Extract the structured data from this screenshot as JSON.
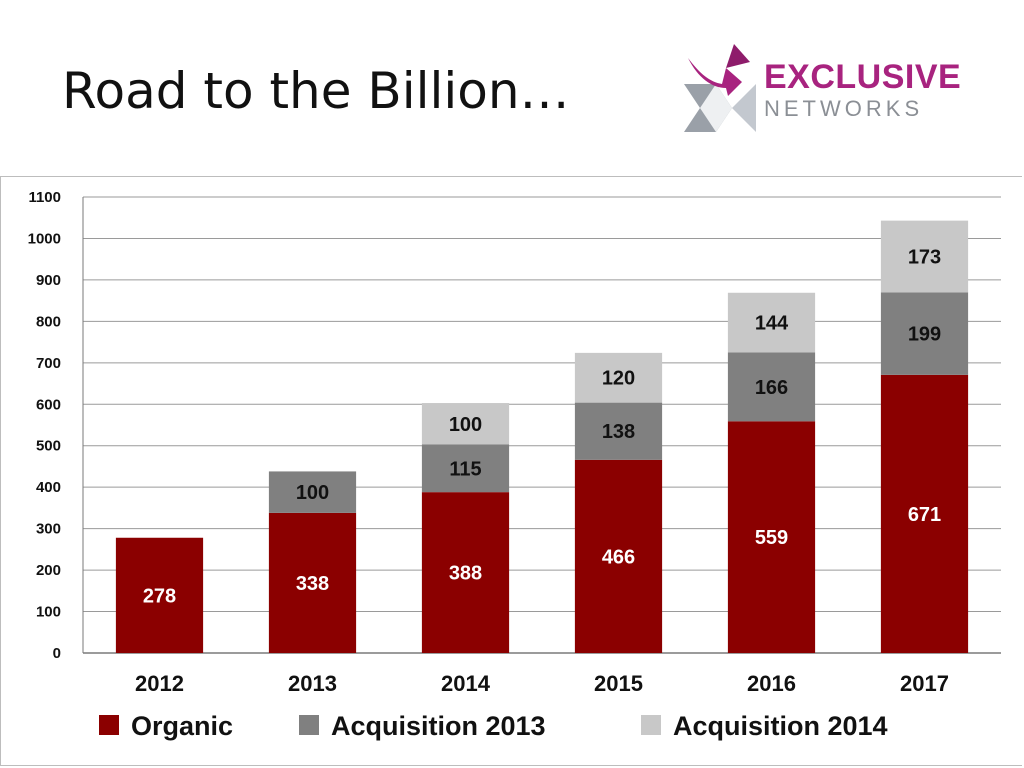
{
  "slide": {
    "title": "Road to the Billion…"
  },
  "logo": {
    "word_top": "EXCLUSIVE",
    "word_bottom": "NETWORKS",
    "colors": {
      "magenta": "#a8237f",
      "grey": "#8b8f95"
    }
  },
  "chart_data": {
    "type": "bar",
    "stacked": true,
    "title": "",
    "xlabel": "",
    "ylabel": "",
    "categories": [
      "2012",
      "2013",
      "2014",
      "2015",
      "2016",
      "2017"
    ],
    "series": [
      {
        "name": "Organic",
        "color": "#8b0000",
        "label_color": "#ffffff",
        "values": [
          278,
          338,
          388,
          466,
          559,
          671
        ]
      },
      {
        "name": "Acquisition 2013",
        "color": "#808080",
        "label_color": "#111111",
        "values": [
          0,
          100,
          115,
          138,
          166,
          199
        ]
      },
      {
        "name": "Acquisition 2014",
        "color": "#c8c8c8",
        "label_color": "#111111",
        "values": [
          0,
          0,
          100,
          120,
          144,
          173
        ]
      }
    ],
    "ylim": [
      0,
      1100
    ],
    "yticks": [
      0,
      100,
      200,
      300,
      400,
      500,
      600,
      700,
      800,
      900,
      1000,
      1100
    ],
    "grid": true,
    "legend_position": "bottom"
  }
}
